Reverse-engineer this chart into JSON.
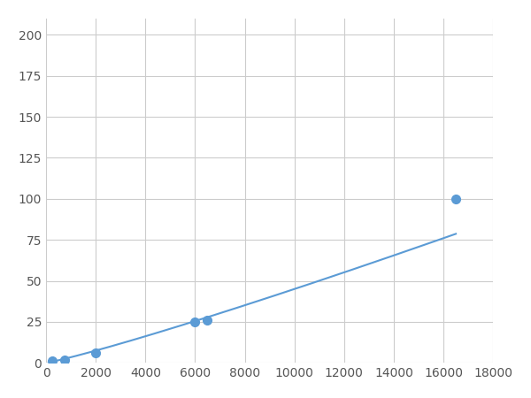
{
  "x": [
    250,
    750,
    2000,
    6000,
    6500,
    16500
  ],
  "y": [
    1,
    2,
    6,
    25,
    26,
    100
  ],
  "line_color": "#5b9bd5",
  "marker_color": "#5b9bd5",
  "marker_size": 7,
  "line_width": 1.5,
  "xlim": [
    0,
    18000
  ],
  "ylim": [
    0,
    210
  ],
  "xticks": [
    0,
    2000,
    4000,
    6000,
    8000,
    10000,
    12000,
    14000,
    16000,
    18000
  ],
  "yticks": [
    0,
    25,
    50,
    75,
    100,
    125,
    150,
    175,
    200
  ],
  "grid_color": "#cccccc",
  "background_color": "#ffffff",
  "tick_label_fontsize": 10
}
